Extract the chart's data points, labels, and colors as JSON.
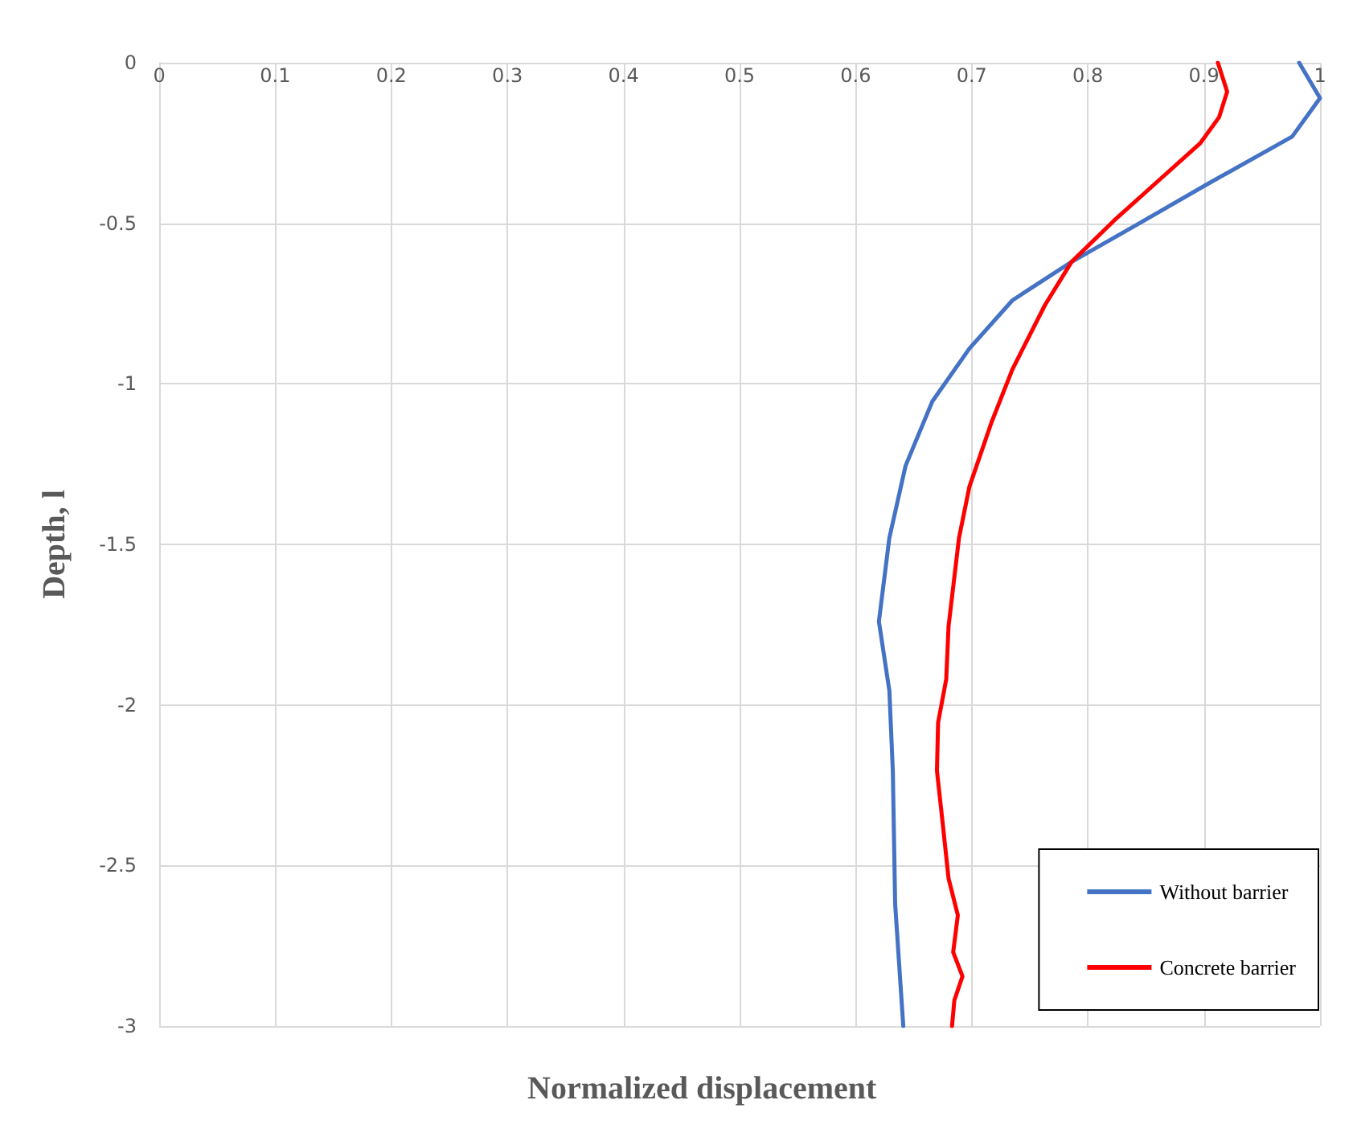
{
  "chart_data": {
    "type": "line",
    "xlabel": "Normalized displacement",
    "ylabel": "Depth, l",
    "series": [
      {
        "name": "Without barrier",
        "color": "#4472c4",
        "x": [
          0.982,
          1.0,
          0.976,
          0.902,
          0.842,
          0.786,
          0.735,
          0.698,
          0.666,
          0.643,
          0.629,
          0.62,
          0.629,
          0.632,
          0.634,
          0.641
        ],
        "values": [
          0,
          -0.11,
          -0.23,
          -0.38,
          -0.505,
          -0.62,
          -0.74,
          -0.89,
          -1.055,
          -1.255,
          -1.48,
          -1.74,
          -1.955,
          -2.205,
          -2.62,
          -3.0
        ]
      },
      {
        "name": "Concrete barrier",
        "color": "#ff0000",
        "x": [
          0.912,
          0.92,
          0.913,
          0.897,
          0.86,
          0.823,
          0.786,
          0.763,
          0.735,
          0.717,
          0.698,
          0.689,
          0.68,
          0.678,
          0.671,
          0.67,
          0.675,
          0.68,
          0.688,
          0.684,
          0.692,
          0.685,
          0.683
        ],
        "values": [
          0,
          -0.09,
          -0.17,
          -0.25,
          -0.37,
          -0.49,
          -0.62,
          -0.755,
          -0.955,
          -1.12,
          -1.32,
          -1.48,
          -1.755,
          -1.92,
          -2.055,
          -2.205,
          -2.37,
          -2.54,
          -2.655,
          -2.77,
          -2.845,
          -2.92,
          -3.0
        ]
      }
    ],
    "xlim": [
      0,
      1
    ],
    "xticks": [
      0,
      0.1,
      0.2,
      0.3,
      0.4,
      0.5,
      0.6,
      0.7,
      0.8,
      0.9,
      1
    ],
    "ylim": [
      -3,
      0
    ],
    "yticks": [
      0,
      -0.5,
      -1,
      -1.5,
      -2,
      -2.5,
      -3
    ],
    "grid": true,
    "legend": "bottom right",
    "marker": "none",
    "line_style": "solid"
  }
}
